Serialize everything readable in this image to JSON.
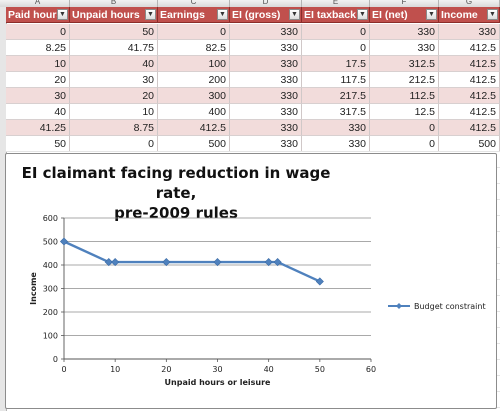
{
  "spreadsheet": {
    "column_letters": [
      "A",
      "B",
      "C",
      "D",
      "E",
      "F",
      "G"
    ],
    "headers": [
      "Paid hours",
      "Unpaid hours",
      "Earnings",
      "EI (gross)",
      "EI taxback",
      "EI (net)",
      "Income"
    ],
    "rows": [
      [
        "0",
        "50",
        "0",
        "330",
        "0",
        "330",
        "330"
      ],
      [
        "8.25",
        "41.75",
        "82.5",
        "330",
        "0",
        "330",
        "412.5"
      ],
      [
        "10",
        "40",
        "100",
        "330",
        "17.5",
        "312.5",
        "412.5"
      ],
      [
        "20",
        "30",
        "200",
        "330",
        "117.5",
        "212.5",
        "412.5"
      ],
      [
        "30",
        "20",
        "300",
        "330",
        "217.5",
        "112.5",
        "412.5"
      ],
      [
        "40",
        "10",
        "400",
        "330",
        "317.5",
        "12.5",
        "412.5"
      ],
      [
        "41.25",
        "8.75",
        "412.5",
        "330",
        "330",
        "0",
        "412.5"
      ],
      [
        "50",
        "0",
        "500",
        "330",
        "330",
        "0",
        "500"
      ]
    ],
    "header_color": "#c0504d",
    "band_color": "#f2dcdb"
  },
  "chart_data": {
    "type": "line",
    "title_lines": [
      "EI claimant facing reduction in wage rate,",
      "pre-2009 rules"
    ],
    "xlabel": "Unpaid hours or leisure",
    "ylabel": "Income",
    "xlim": [
      0,
      60
    ],
    "ylim": [
      0,
      600
    ],
    "xticks": [
      0,
      10,
      20,
      30,
      40,
      50,
      60
    ],
    "yticks": [
      0,
      100,
      200,
      300,
      400,
      500,
      600
    ],
    "grid": true,
    "legend_position": "right",
    "series": [
      {
        "name": "Budget constraint",
        "color": "#4f81bd",
        "x": [
          0,
          8.75,
          10,
          20,
          30,
          40,
          41.75,
          50
        ],
        "y": [
          500,
          412.5,
          412.5,
          412.5,
          412.5,
          412.5,
          412.5,
          330
        ]
      }
    ]
  }
}
